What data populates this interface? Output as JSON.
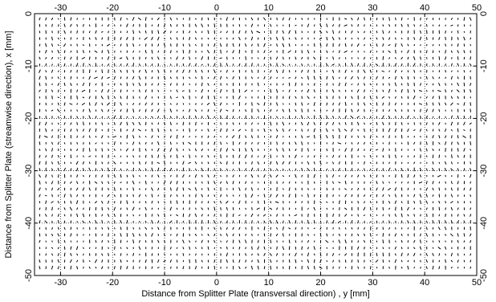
{
  "chart_data": {
    "type": "quiver",
    "xlabel": "Distance from Splitter Plate (transversal direction) , y [mm]",
    "ylabel": "Distance from Splitter Plate (streamwise direction), x [mm]",
    "xlim": [
      -35,
      50
    ],
    "ylim": [
      0,
      -50
    ],
    "y_axis_direction": "downward",
    "x_ticks": [
      -30,
      -20,
      -10,
      0,
      10,
      20,
      30,
      40,
      50
    ],
    "y_ticks": [
      0,
      -10,
      -20,
      -30,
      -40,
      -50
    ],
    "x_tick_labels": [
      "-30",
      "-20",
      "-10",
      "0",
      "10",
      "20",
      "30",
      "40",
      "50"
    ],
    "y_tick_labels": [
      "0",
      "-10",
      "-20",
      "-30",
      "-40",
      "-50"
    ],
    "ticks_mirrored": true,
    "grid": true,
    "grid_style": "dotted",
    "vector_field": {
      "y_start": -34,
      "y_step": 1.2,
      "y_count": 70,
      "x_start": -1,
      "x_step": 1.25,
      "x_count": 40,
      "mean_direction": "x",
      "description": "Dense field of short velocity vectors, mostly streamwise with small random deviations"
    },
    "colors": {
      "axes": "#000000",
      "vectors": "#000000",
      "background": "#ffffff"
    }
  }
}
